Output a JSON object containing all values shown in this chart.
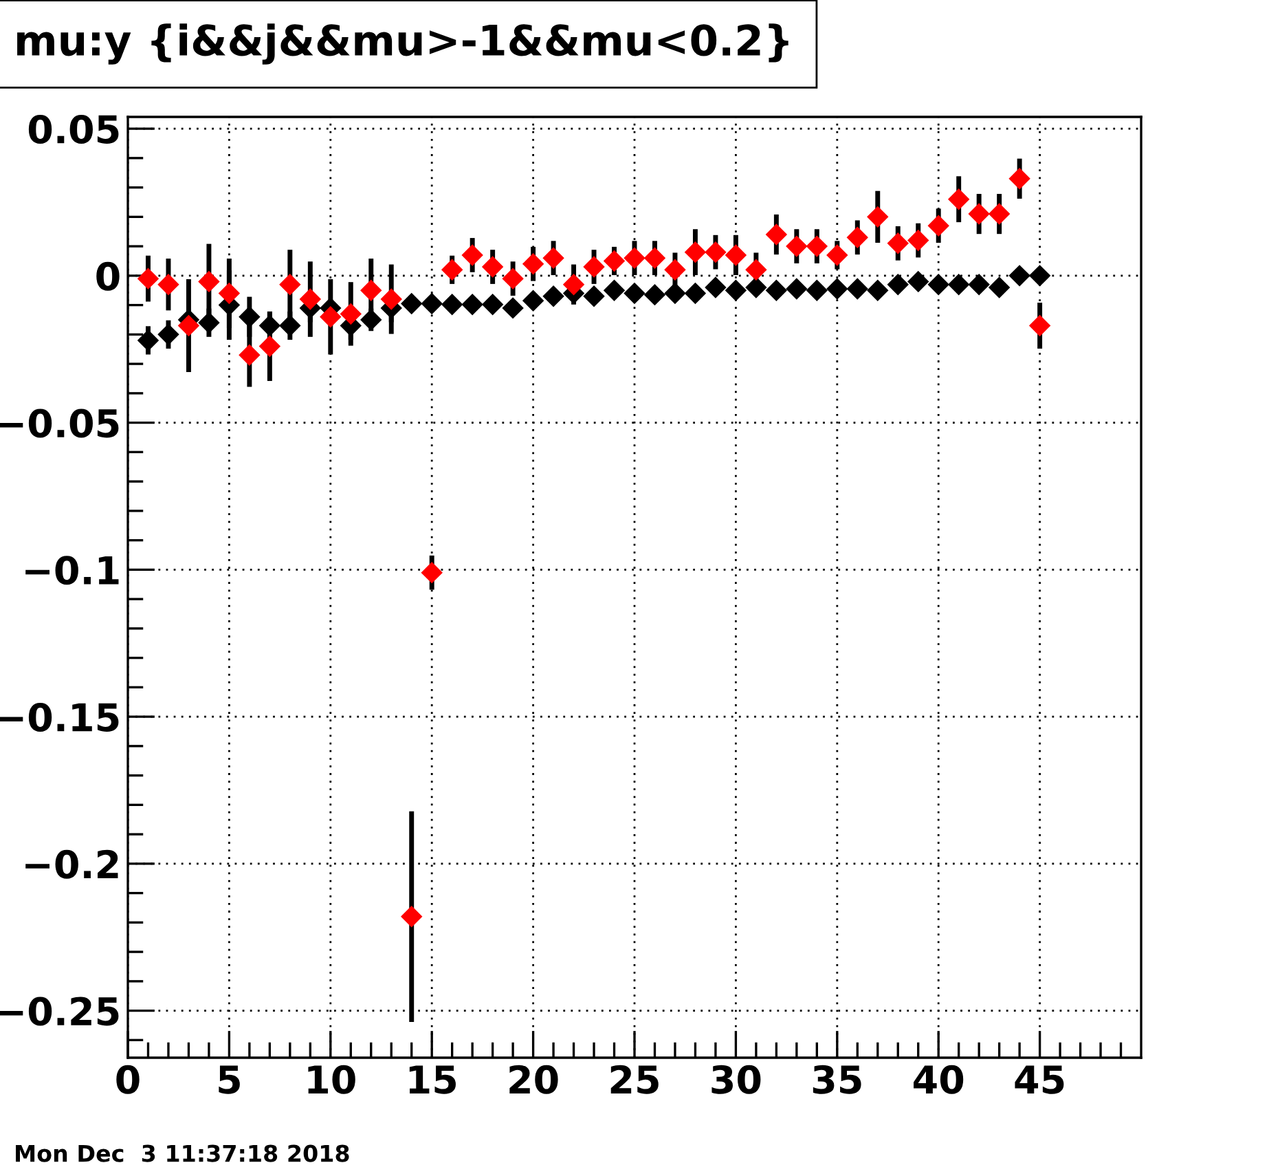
{
  "chart_data": {
    "type": "scatter",
    "title": "mu:y {i&&j&&mu>-1&&mu<0.2}",
    "annotations": [
      "Mon Dec  3 11:37:18 2018"
    ],
    "x": [
      1,
      2,
      3,
      4,
      5,
      6,
      7,
      8,
      9,
      10,
      11,
      12,
      13,
      14,
      15,
      16,
      17,
      18,
      19,
      20,
      21,
      22,
      23,
      24,
      25,
      26,
      27,
      28,
      29,
      30,
      31,
      32,
      33,
      34,
      35,
      36,
      37,
      38,
      39,
      40,
      41,
      42,
      43,
      44,
      45
    ],
    "series": [
      {
        "color": "#000000",
        "values": [
          -0.022,
          -0.02,
          -0.015,
          -0.016,
          -0.01,
          -0.014,
          -0.017,
          -0.017,
          -0.011,
          -0.011,
          -0.017,
          -0.015,
          -0.011,
          -0.0095,
          -0.0095,
          -0.0098,
          -0.0098,
          -0.0098,
          -0.011,
          -0.0085,
          -0.007,
          -0.006,
          -0.007,
          -0.005,
          -0.006,
          -0.0065,
          -0.006,
          -0.006,
          -0.004,
          -0.005,
          -0.004,
          -0.005,
          -0.0045,
          -0.005,
          -0.0045,
          -0.0045,
          -0.005,
          -0.003,
          -0.002,
          -0.003,
          -0.003,
          -0.003,
          -0.004,
          0,
          0
        ],
        "errors": [
          0.004,
          0.004,
          null,
          0.004,
          0.011,
          0.006,
          0.004,
          0.004,
          0.004,
          null,
          0.004,
          0.003,
          0.004,
          null,
          null,
          null,
          null,
          null,
          null,
          null,
          null,
          null,
          null,
          null,
          null,
          null,
          null,
          null,
          null,
          null,
          null,
          null,
          null,
          null,
          null,
          null,
          null,
          null,
          null,
          null,
          null,
          null,
          null,
          null,
          null
        ]
      },
      {
        "color": "#ff0000",
        "values": [
          -0.001,
          -0.003,
          -0.017,
          -0.002,
          -0.006,
          -0.027,
          -0.024,
          -0.003,
          -0.008,
          -0.014,
          -0.013,
          -0.005,
          -0.008,
          -0.218,
          -0.101,
          0.002,
          0.007,
          0.003,
          -0.001,
          0.004,
          0.006,
          -0.003,
          0.003,
          0.005,
          0.006,
          0.006,
          0.002,
          0.008,
          0.008,
          0.007,
          0.002,
          0.014,
          0.01,
          0.01,
          0.007,
          0.013,
          0.02,
          0.011,
          0.012,
          0.017,
          0.026,
          0.021,
          0.021,
          0.033,
          -0.017
        ],
        "errors": [
          0.007,
          0.008,
          0.015,
          0.012,
          0.011,
          0.01,
          0.011,
          0.011,
          0.012,
          0.012,
          0.01,
          0.01,
          0.011,
          0.035,
          0.005,
          0.004,
          0.005,
          0.005,
          0.005,
          0.005,
          0.005,
          0.006,
          0.005,
          0.004,
          0.005,
          0.005,
          0.005,
          0.007,
          0.005,
          0.006,
          0.005,
          0.006,
          0.005,
          0.005,
          0.004,
          0.005,
          0.008,
          0.005,
          0.005,
          0.005,
          0.007,
          0.006,
          0.006,
          0.006,
          0.007
        ]
      }
    ],
    "xlim": [
      0,
      50
    ],
    "ylim": [
      -0.266,
      0.054
    ],
    "xticks": [
      0,
      {
        "value": 1,
        "label": null
      },
      {
        "value": 2,
        "label": null
      },
      {
        "value": 3,
        "label": null
      },
      {
        "value": 4,
        "label": null
      },
      5,
      {
        "value": 6,
        "label": null
      },
      {
        "value": 7,
        "label": null
      },
      {
        "value": 8,
        "label": null
      },
      {
        "value": 9,
        "label": null
      },
      10,
      {
        "value": 11,
        "label": null
      },
      {
        "value": 12,
        "label": null
      },
      {
        "value": 13,
        "label": null
      },
      {
        "value": 14,
        "label": null
      },
      15,
      {
        "value": 16,
        "label": null
      },
      {
        "value": 17,
        "label": null
      },
      {
        "value": 18,
        "label": null
      },
      {
        "value": 19,
        "label": null
      },
      20,
      {
        "value": 21,
        "label": null
      },
      {
        "value": 22,
        "label": null
      },
      {
        "value": 23,
        "label": null
      },
      {
        "value": 24,
        "label": null
      },
      25,
      {
        "value": 26,
        "label": null
      },
      {
        "value": 27,
        "label": null
      },
      {
        "value": 28,
        "label": null
      },
      {
        "value": 29,
        "label": null
      },
      30,
      {
        "value": 31,
        "label": null
      },
      {
        "value": 32,
        "label": null
      },
      {
        "value": 33,
        "label": null
      },
      {
        "value": 34,
        "label": null
      },
      35,
      {
        "value": 36,
        "label": null
      },
      {
        "value": 37,
        "label": null
      },
      {
        "value": 38,
        "label": null
      },
      {
        "value": 39,
        "label": null
      },
      40,
      {
        "value": 41,
        "label": null
      },
      {
        "value": 42,
        "label": null
      },
      {
        "value": 43,
        "label": null
      },
      {
        "value": 44,
        "label": null
      },
      45,
      {
        "value": 46,
        "label": null
      },
      {
        "value": 47,
        "label": null
      },
      {
        "value": 48,
        "label": null
      },
      {
        "value": 49,
        "label": null
      }
    ],
    "yticks": [
      {
        "value": -0.26,
        "label": null
      },
      {
        "value": -0.25,
        "label": "−0.25"
      },
      {
        "value": -0.24,
        "label": null
      },
      {
        "value": -0.23,
        "label": null
      },
      {
        "value": -0.22,
        "label": null
      },
      {
        "value": -0.21,
        "label": null
      },
      {
        "value": -0.2,
        "label": "−0.2"
      },
      {
        "value": -0.19,
        "label": null
      },
      {
        "value": -0.18,
        "label": null
      },
      {
        "value": -0.17,
        "label": null
      },
      {
        "value": -0.16,
        "label": null
      },
      {
        "value": -0.15,
        "label": "−0.15"
      },
      {
        "value": -0.14,
        "label": null
      },
      {
        "value": -0.13,
        "label": null
      },
      {
        "value": -0.12,
        "label": null
      },
      {
        "value": -0.11,
        "label": null
      },
      {
        "value": -0.1,
        "label": "−0.1"
      },
      {
        "value": -0.09,
        "label": null
      },
      {
        "value": -0.08,
        "label": null
      },
      {
        "value": -0.07,
        "label": null
      },
      {
        "value": -0.06,
        "label": null
      },
      {
        "value": -0.05,
        "label": "−0.05"
      },
      {
        "value": -0.04,
        "label": null
      },
      {
        "value": -0.03,
        "label": null
      },
      {
        "value": -0.02,
        "label": null
      },
      {
        "value": -0.01,
        "label": null
      },
      0,
      {
        "value": 0.01,
        "label": null
      },
      {
        "value": 0.02,
        "label": null
      },
      {
        "value": 0.03,
        "label": null
      },
      {
        "value": 0.04,
        "label": null
      },
      0.05
    ],
    "grid": true,
    "marker": "diamond"
  }
}
